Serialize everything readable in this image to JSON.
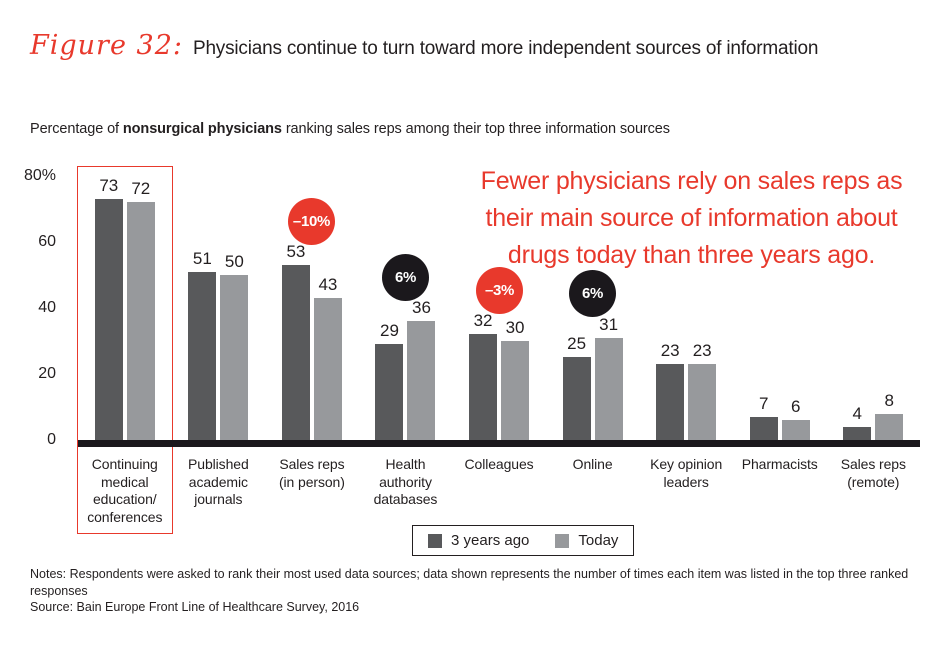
{
  "figure_label": "Figure 32:",
  "title": "Physicians continue to turn toward more independent sources of information",
  "subtitle": {
    "pre": "Percentage of ",
    "bold": "nonsurgical physicians",
    "post": " ranking sales reps among their top three information sources"
  },
  "annotation": {
    "lines": [
      "Fewer physicians rely on sales reps as",
      "their main source of information about",
      "drugs today than three years ago."
    ]
  },
  "colors": {
    "red": "#e8392c",
    "badge_black": "#1b181c",
    "dark_bar": "#58595b",
    "light_bar": "#97999c",
    "text": "#231f20"
  },
  "chart_data": {
    "type": "bar",
    "title": "Percentage of nonsurgical physicians ranking sales reps among their top three information sources",
    "categories": [
      "Continuing\nmedical\neducation/\nconferences",
      "Published\nacademic\njournals",
      "Sales reps\n(in person)",
      "Health\nauthority\ndatabases",
      "Colleagues",
      "Online",
      "Key opinion\nleaders",
      "Pharmacists",
      "Sales reps\n(remote)"
    ],
    "series": [
      {
        "name": "3 years ago",
        "values": [
          73,
          51,
          53,
          29,
          32,
          25,
          23,
          7,
          4
        ]
      },
      {
        "name": "Today",
        "values": [
          72,
          50,
          43,
          36,
          30,
          31,
          23,
          6,
          8
        ]
      }
    ],
    "y_ticks": [
      {
        "label": "80%",
        "value": 80
      },
      {
        "label": "60",
        "value": 60
      },
      {
        "label": "40",
        "value": 40
      },
      {
        "label": "20",
        "value": 20
      },
      {
        "label": "0",
        "value": 0
      }
    ],
    "ylim": [
      0,
      80
    ],
    "grid": false,
    "legend_position": "bottom",
    "legend": [
      "3 years ago",
      "Today"
    ],
    "badges": [
      {
        "category_index": 2,
        "label": "–10%",
        "type": "decrease"
      },
      {
        "category_index": 3,
        "label": "6%",
        "type": "increase"
      },
      {
        "category_index": 4,
        "label": "–3%",
        "type": "decrease"
      },
      {
        "category_index": 5,
        "label": "6%",
        "type": "increase"
      }
    ],
    "highlight_category_index": 0
  },
  "notes": "Notes: Respondents were asked to rank their most used data sources; data shown represents the number of times each item was listed in the top three ranked responses",
  "source": "Source: Bain Europe Front Line of Healthcare Survey, 2016"
}
